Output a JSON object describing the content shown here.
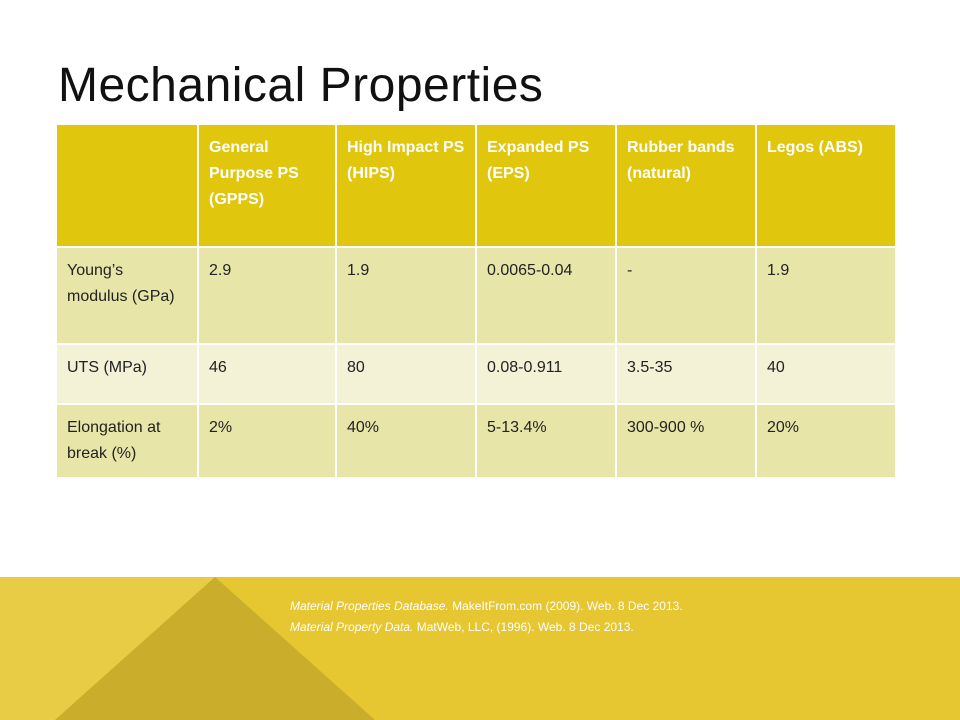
{
  "title": "Mechanical Properties",
  "table": {
    "columns": [
      "General Purpose PS (GPPS)",
      "High Impact PS (HIPS)",
      "Expanded PS (EPS)",
      "Rubber bands (natural)",
      "Legos (ABS)"
    ],
    "rows": [
      {
        "label": "Young’s modulus (GPa)",
        "cells": [
          "2.9",
          "1.9",
          "0.0065-0.04",
          "-",
          "1.9"
        ]
      },
      {
        "label": "UTS (MPa)",
        "cells": [
          "46",
          "80",
          "0.08-0.911",
          "3.5-35",
          "40"
        ]
      },
      {
        "label": "Elongation at break (%)",
        "cells": [
          "2%",
          "40%",
          "5-13.4%",
          "300-900 %",
          "20%"
        ]
      }
    ]
  },
  "references": [
    {
      "source": "Material Properties Database.",
      "details": "MakeItFrom.com (2009). Web.  8 Dec 2013."
    },
    {
      "source": "Material Property Data.",
      "details": "MatWeb, LLC, (1996). Web.  8 Dec 2013."
    }
  ]
}
